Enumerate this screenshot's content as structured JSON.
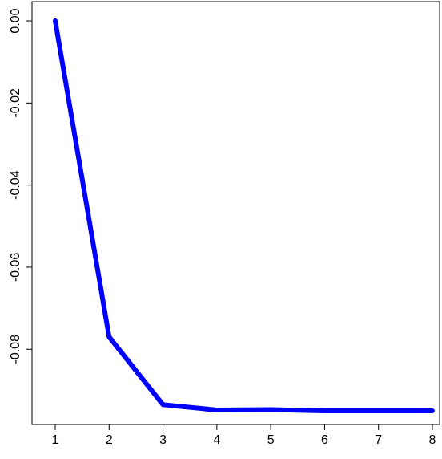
{
  "chart_data": {
    "type": "line",
    "title": "",
    "xlabel": "",
    "ylabel": "",
    "x": [
      1,
      2,
      3,
      4,
      5,
      6,
      7,
      8
    ],
    "series": [
      {
        "values": [
          0.0,
          -0.077,
          -0.0935,
          -0.0948,
          -0.0947,
          -0.095,
          -0.095,
          -0.095
        ],
        "color": "#0000ff"
      }
    ],
    "xlim": [
      1,
      8
    ],
    "ylim": [
      -0.095,
      0.0
    ],
    "x_ticks": [
      1,
      2,
      3,
      4,
      5,
      6,
      7,
      8
    ],
    "x_tick_labels": [
      "1",
      "2",
      "3",
      "4",
      "5",
      "6",
      "7",
      "8"
    ],
    "y_ticks": [
      -0.08,
      -0.06,
      -0.04,
      -0.02,
      0.0
    ],
    "y_tick_labels": [
      "-0.08",
      "-0.06",
      "-0.04",
      "-0.02",
      "0.00"
    ],
    "grid": false,
    "legend": "none",
    "frame_color": "#000000"
  }
}
